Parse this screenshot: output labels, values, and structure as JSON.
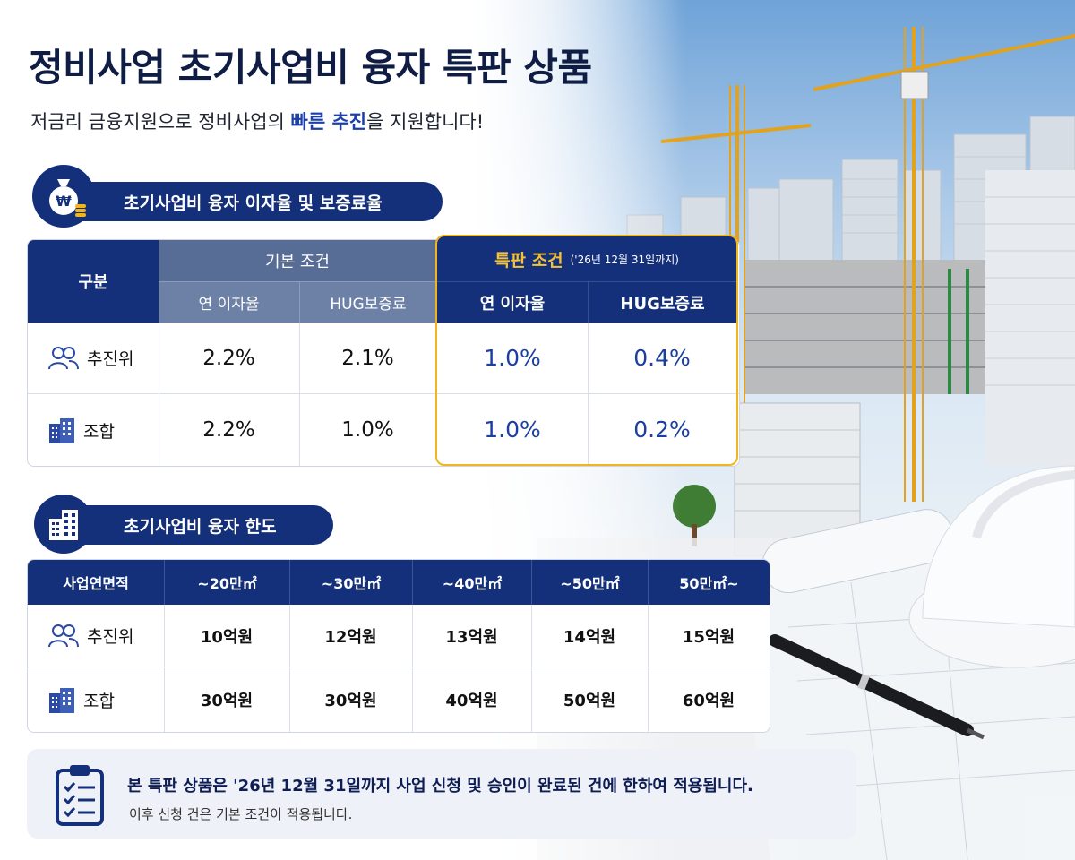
{
  "header": {
    "title": "정비사업 초기사업비 융자 특판 상품",
    "subtitle_prefix": "저금리 금융지원으로 정비사업의 ",
    "subtitle_highlight": "빠른 추진",
    "subtitle_suffix": "을 지원합니다!"
  },
  "section1": {
    "title": "초기사업비 융자 이자율 및 보증료율",
    "icon": "money-bag-icon",
    "icon_symbol": "₩",
    "table": {
      "col_category": "구분",
      "group_basic": "기본 조건",
      "group_special": "특판 조건",
      "group_special_note": "('26년 12월 31일까지)",
      "sub_rate": "연 이자율",
      "sub_fee": "HUG보증료",
      "rows": [
        {
          "label": "추진위",
          "icon": "people-icon",
          "basic_rate": "2.2%",
          "basic_fee": "2.1%",
          "special_rate": "1.0%",
          "special_fee": "0.4%"
        },
        {
          "label": "조합",
          "icon": "building-icon",
          "basic_rate": "2.2%",
          "basic_fee": "1.0%",
          "special_rate": "1.0%",
          "special_fee": "0.2%"
        }
      ]
    }
  },
  "section2": {
    "title": "초기사업비 융자 한도",
    "icon": "building-icon",
    "table": {
      "headers": [
        "사업연면적",
        "~20만㎡",
        "~30만㎡",
        "~40만㎡",
        "~50만㎡",
        "50만㎡~"
      ],
      "rows": [
        {
          "label": "추진위",
          "icon": "people-icon",
          "values": [
            "10억원",
            "12억원",
            "13억원",
            "14억원",
            "15억원"
          ]
        },
        {
          "label": "조합",
          "icon": "building-icon",
          "values": [
            "30억원",
            "30억원",
            "40억원",
            "50억원",
            "60억원"
          ]
        }
      ]
    }
  },
  "notice": {
    "icon": "clipboard-checklist-icon",
    "main": "본 특판 상품은 '26년 12월 31일까지 사업 신청 및 승인이 완료된 건에 한하여 적용됩니다.",
    "sub": "이후 신청 건은 기본 조건이 적용됩니다."
  },
  "colors": {
    "navy": "#14307a",
    "accent_gold": "#f2b61c",
    "special_value_blue": "#1a3fa0"
  }
}
